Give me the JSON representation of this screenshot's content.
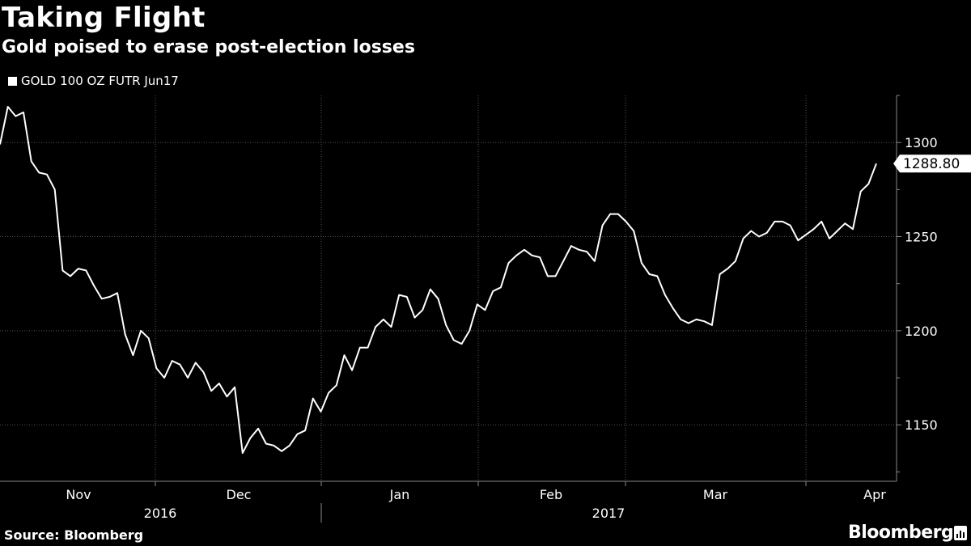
{
  "chart_data": {
    "type": "line",
    "title": "Taking Flight",
    "subtitle": "Gold poised to erase post-election losses",
    "legend": [
      "GOLD 100 OZ FUTR Jun17"
    ],
    "source": "Source: Bloomberg",
    "brand": "Bloomberg",
    "ylim": [
      1120,
      1325
    ],
    "yticks": [
      1150,
      1200,
      1250,
      1300
    ],
    "last_value_label": "1288.80",
    "xlabel": "",
    "ylabel": "",
    "month_labels": [
      "Nov",
      "Dec",
      "Jan",
      "Feb",
      "Mar",
      "Apr"
    ],
    "year_labels": [
      "2016",
      "2017"
    ],
    "series": [
      {
        "name": "GOLD 100 OZ FUTR Jun17",
        "values": [
          1299,
          1319,
          1314,
          1316,
          1290,
          1284,
          1283,
          1275,
          1232,
          1229,
          1233,
          1232,
          1224,
          1217,
          1218,
          1220,
          1198,
          1187,
          1200,
          1196,
          1180,
          1175,
          1184,
          1182,
          1175,
          1183,
          1178,
          1168,
          1172,
          1165,
          1170,
          1135,
          1143,
          1148,
          1140,
          1139,
          1136,
          1139,
          1145,
          1147,
          1164,
          1157,
          1167,
          1171,
          1187,
          1179,
          1191,
          1191,
          1202,
          1206,
          1202,
          1219,
          1218,
          1207,
          1211,
          1222,
          1217,
          1203,
          1195,
          1193,
          1200,
          1214,
          1211,
          1221,
          1223,
          1236,
          1240,
          1243,
          1240,
          1239,
          1229,
          1229,
          1237,
          1245,
          1243,
          1242,
          1237,
          1256,
          1262,
          1262,
          1258,
          1253,
          1236,
          1230,
          1229,
          1219,
          1212,
          1206,
          1204,
          1206,
          1205,
          1203,
          1230,
          1233,
          1237,
          1249,
          1253,
          1250,
          1252,
          1258,
          1258,
          1256,
          1248,
          1251,
          1254,
          1258,
          1249,
          1253,
          1257,
          1254,
          1274,
          1278,
          1288.8
        ]
      }
    ]
  }
}
